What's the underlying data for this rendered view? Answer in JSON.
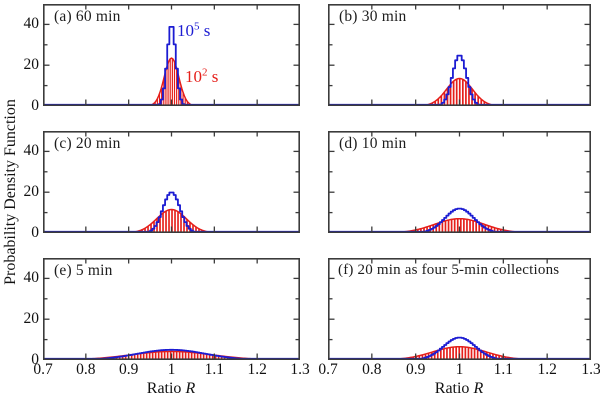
{
  "figure": {
    "ylabel": "Probability Density Function",
    "xlabel_word": "Ratio",
    "xlabel_var": "R",
    "colors": {
      "blue": "#1c1cd2",
      "red": "#e51f1a",
      "axis": "#3b3b3b",
      "background": "#ffffff"
    },
    "legend": {
      "blue": {
        "base": "10",
        "exp": "5",
        "unit": " s"
      },
      "red": {
        "base": "10",
        "exp": "2",
        "unit": " s"
      }
    }
  },
  "chart_data": {
    "type": "line",
    "title": "",
    "xlabel": "Ratio R",
    "ylabel": "Probability Density Function",
    "xlim": [
      0.7,
      1.3
    ],
    "ylim": [
      0,
      50
    ],
    "grid": false,
    "x_tick_values": [
      0.7,
      0.8,
      0.9,
      1.0,
      1.1,
      1.2,
      1.3
    ],
    "x_tick_labels": [
      "0.7",
      "0.8",
      "0.9",
      "1",
      "1.1",
      "1.2",
      "1.3"
    ],
    "y_tick_values_labeled": [
      0,
      20,
      40
    ],
    "y_tick_labels": [
      "0",
      "20",
      "40"
    ],
    "y_tick_values_minor": [
      10,
      30
    ],
    "series_legend": [
      {
        "name": "10^5 s",
        "color": "#1c1cd2",
        "style": "stepped line (stairs PDF)"
      },
      {
        "name": "10^2 s",
        "color": "#e51f1a",
        "style": "histogram bars with Gaussian envelope"
      }
    ],
    "panels": [
      {
        "key": "a",
        "label": "(a) 60 min",
        "row": 0,
        "col": 0,
        "mean": 1.0,
        "blue_peak": 40,
        "blue_sigma": 0.01,
        "red_peak": 23.5,
        "red_sigma": 0.017,
        "bar_step": 0.005
      },
      {
        "key": "b",
        "label": "(b) 30 min",
        "row": 0,
        "col": 1,
        "mean": 1.0,
        "blue_peak": 25,
        "blue_sigma": 0.016,
        "red_peak": 13.5,
        "red_sigma": 0.0296,
        "bar_step": 0.007
      },
      {
        "key": "c",
        "label": "(c) 20 min",
        "row": 1,
        "col": 0,
        "mean": 1.0,
        "blue_peak": 20,
        "blue_sigma": 0.02,
        "red_peak": 11.5,
        "red_sigma": 0.0347,
        "bar_step": 0.007
      },
      {
        "key": "d",
        "label": "(d) 10 min",
        "row": 1,
        "col": 1,
        "mean": 1.0,
        "blue_peak": 12,
        "blue_sigma": 0.0332,
        "red_peak": 7.0,
        "red_sigma": 0.057,
        "bar_step": 0.007
      },
      {
        "key": "e",
        "label": "(e) 5 min",
        "row": 2,
        "col": 0,
        "mean": 1.0,
        "blue_peak": 5,
        "blue_sigma": 0.0798,
        "red_peak": 4.2,
        "red_sigma": 0.095,
        "bar_step": 0.007
      },
      {
        "key": "f",
        "label": "(f) 20 min as four 5-min collections",
        "row": 2,
        "col": 1,
        "mean": 1.0,
        "blue_peak": 11,
        "blue_sigma": 0.0363,
        "red_peak": 6.5,
        "red_sigma": 0.0614,
        "bar_step": 0.007
      }
    ]
  }
}
